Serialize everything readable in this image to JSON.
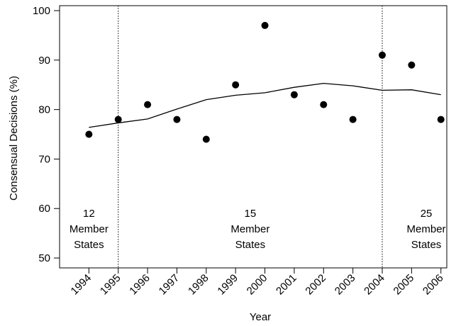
{
  "chart_data": {
    "type": "scatter",
    "title": "",
    "xlabel": "Year",
    "ylabel": "Consensual Decisions (%)",
    "ylim": [
      48,
      101
    ],
    "xlim": [
      1993.0,
      2006.2
    ],
    "yticks": [
      50,
      60,
      70,
      80,
      90,
      100
    ],
    "xticks": [
      1994,
      1995,
      1996,
      1997,
      1998,
      1999,
      2000,
      2001,
      2002,
      2003,
      2004,
      2005,
      2006
    ],
    "grid": false,
    "legend": "none",
    "series": [
      {
        "type": "scatter",
        "x": [
          1994,
          1995,
          1996,
          1997,
          1998,
          1999,
          2000,
          2001,
          2002,
          2003,
          2004,
          2005,
          2006
        ],
        "y": [
          75,
          78,
          81,
          78,
          74,
          85,
          97,
          83,
          81,
          78,
          91,
          89,
          78
        ]
      },
      {
        "type": "line",
        "x": [
          1994,
          1995,
          1996,
          1997,
          1998,
          1999,
          2000,
          2001,
          2002,
          2003,
          2004,
          2005,
          2006
        ],
        "y": [
          76.4,
          77.3,
          78.1,
          80.1,
          82.0,
          82.9,
          83.4,
          84.5,
          85.3,
          84.8,
          83.9,
          84.0,
          83.0
        ]
      }
    ],
    "period_boundaries": [
      1995,
      2004
    ],
    "period_labels": [
      {
        "lines": [
          "12",
          "Member",
          "States"
        ],
        "x": 1994
      },
      {
        "lines": [
          "15",
          "Member",
          "States"
        ],
        "x": 1999.5
      },
      {
        "lines": [
          "25",
          "Member",
          "States"
        ],
        "x": 2005.5
      }
    ]
  }
}
